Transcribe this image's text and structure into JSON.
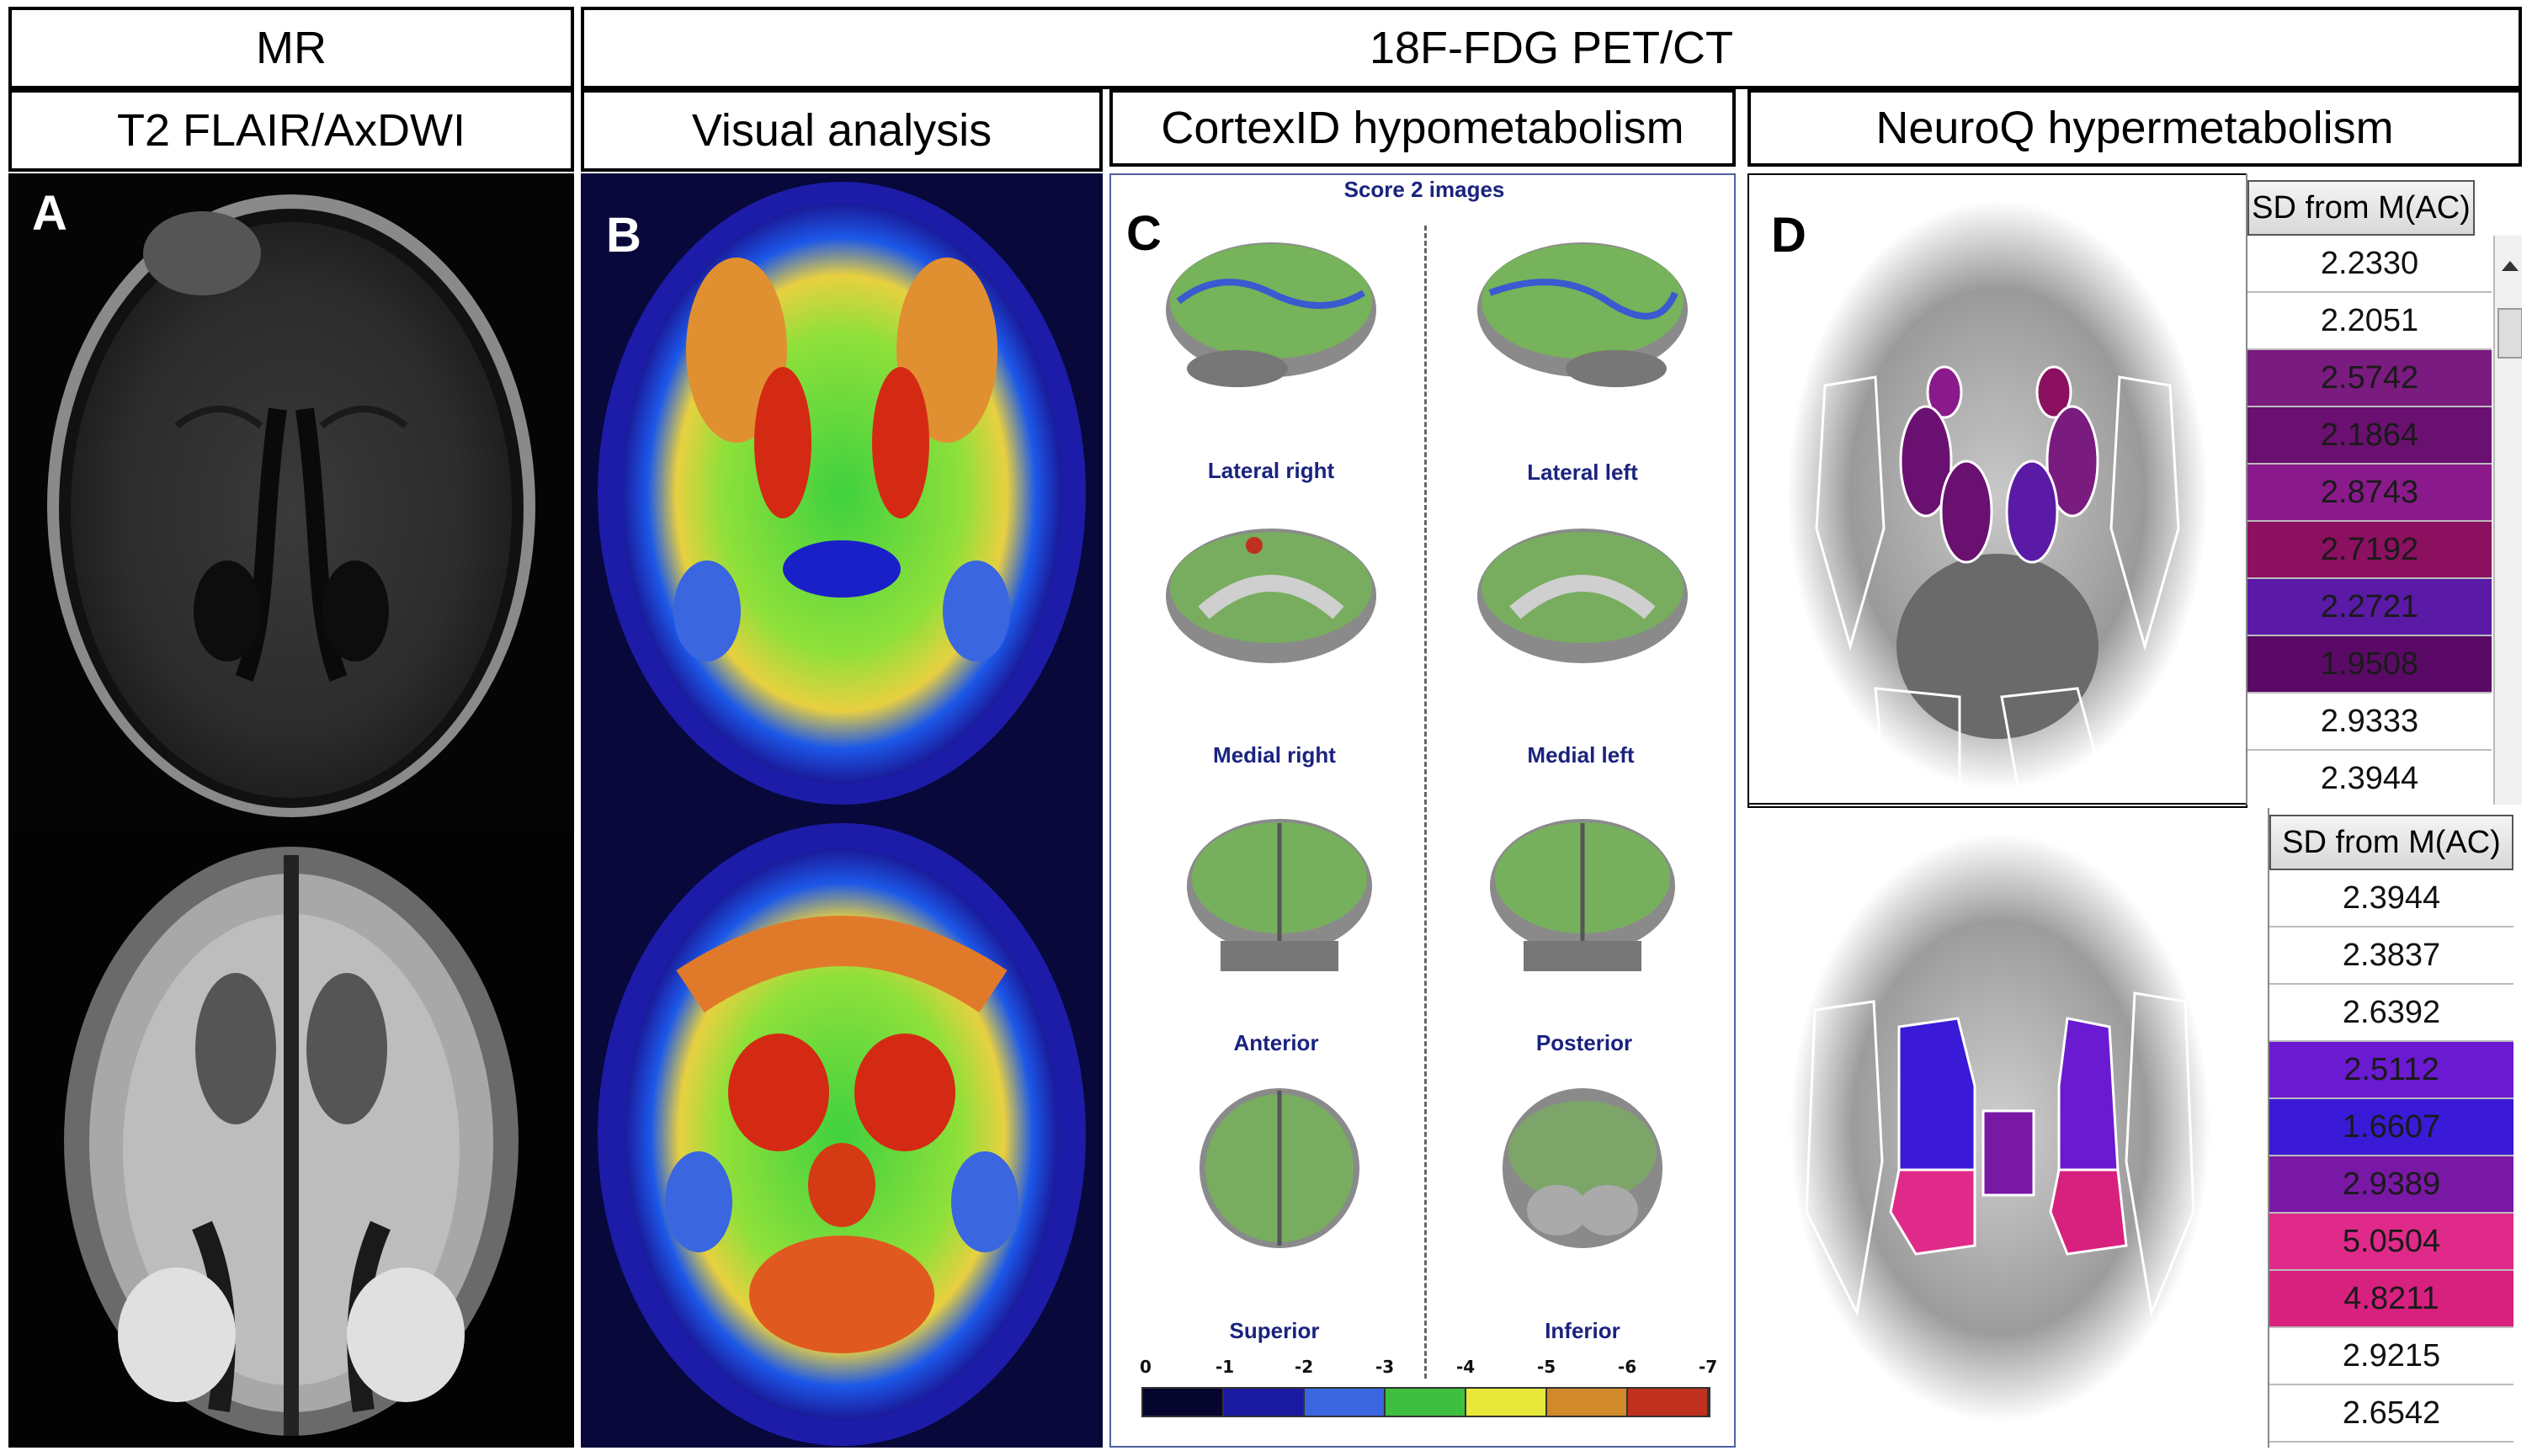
{
  "headers": {
    "mr": "MR",
    "pet": "18F-FDG PET/CT",
    "t2": "T2 FLAIR/AxDWI",
    "visual": "Visual analysis",
    "cortexid": "CortexID hypometabolism",
    "neuroq": "NeuroQ hypermetabolism"
  },
  "panel_labels": {
    "a": "A",
    "b": "B",
    "c": "C",
    "d": "D"
  },
  "cortexid": {
    "title": "Score 2 images",
    "views": {
      "lateral_right": "Lateral right",
      "lateral_left": "Lateral left",
      "medial_right": "Medial right",
      "medial_left": "Medial left",
      "anterior": "Anterior",
      "posterior": "Posterior",
      "superior": "Superior",
      "inferior": "Inferior"
    },
    "scale_ticks": [
      "0",
      "-1",
      "-2",
      "-3",
      "-4",
      "-5",
      "-6",
      "-7"
    ],
    "scale_colors": [
      "#05052e",
      "#1a1aa0",
      "#3a66e0",
      "#3fbf3f",
      "#e8e83a",
      "#d08a2a",
      "#c0301e"
    ]
  },
  "neuroq": {
    "table1": {
      "header": "SD from M(AC)",
      "rows": [
        "2.2330",
        "2.2051",
        "2.5742",
        "2.1864",
        "2.8743",
        "2.7192",
        "2.2721",
        "1.9508",
        "2.9333",
        "2.3944"
      ],
      "colors": [
        "#ffffff",
        "#ffffff",
        "#7a1b80",
        "#6a1070",
        "#8a1a8c",
        "#8c1060",
        "#5a1aa6",
        "#5a0a66",
        "#ffffff",
        "#ffffff"
      ]
    },
    "table2": {
      "header": "SD from M(AC)",
      "rows": [
        "2.3944",
        "2.3837",
        "2.6392",
        "2.5112",
        "1.6607",
        "2.9389",
        "5.0504",
        "4.8211",
        "2.9215",
        "2.6542"
      ],
      "colors": [
        "#ffffff",
        "#ffffff",
        "#ffffff",
        "#6a1ad0",
        "#3a1ad6",
        "#7a18a6",
        "#e02a8a",
        "#d8207e",
        "#ffffff",
        "#ffffff"
      ]
    }
  }
}
